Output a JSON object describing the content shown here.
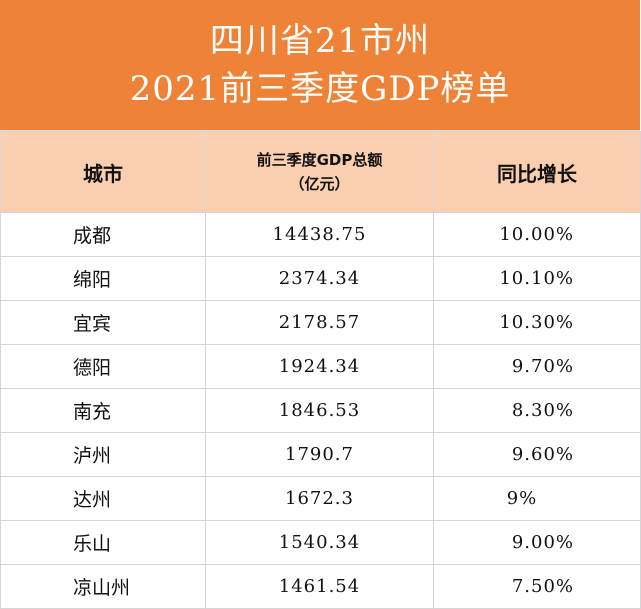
{
  "title": {
    "line1": "四川省21市州",
    "line2": "2021前三季度GDP榜单"
  },
  "headers": {
    "city": "城市",
    "gdp_line1": "前三季度GDP总额",
    "gdp_line2": "（亿元）",
    "growth": "同比增长"
  },
  "rows": [
    {
      "city": "成都",
      "gdp": "14438.75",
      "growth": "10.00%"
    },
    {
      "city": "绵阳",
      "gdp": "2374.34",
      "growth": "10.10%"
    },
    {
      "city": "宜宾",
      "gdp": "2178.57",
      "growth": "10.30%"
    },
    {
      "city": "德阳",
      "gdp": "1924.34",
      "growth": "9.70%"
    },
    {
      "city": "南充",
      "gdp": "1846.53",
      "growth": "8.30%"
    },
    {
      "city": "泸州",
      "gdp": "1790.7",
      "growth": "9.60%"
    },
    {
      "city": "达州",
      "gdp": "1672.3",
      "growth": "9%"
    },
    {
      "city": "乐山",
      "gdp": "1540.34",
      "growth": "9.00%"
    },
    {
      "city": "凉山州",
      "gdp": "1461.54",
      "growth": "7.50%"
    }
  ],
  "colors": {
    "title_background": "#ee8236",
    "header_background": "#f9cfb0",
    "grid_lines": "#d6d6d6"
  }
}
